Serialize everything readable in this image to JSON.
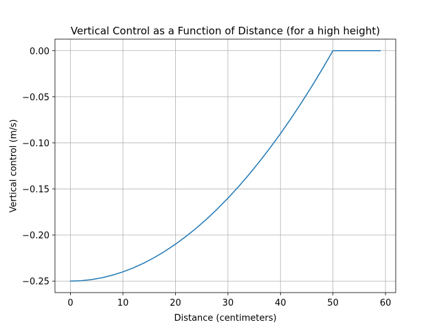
{
  "chart_data": {
    "type": "line",
    "title": "Vertical Control as a Function of Distance (for a high height)",
    "xlabel": "Distance (centimeters)",
    "ylabel": "Vertical control (m/s)",
    "xlim": [
      -2.95,
      61.95
    ],
    "ylim": [
      -0.2625,
      0.0125
    ],
    "xticks": [
      0,
      10,
      20,
      30,
      40,
      50,
      60
    ],
    "xtick_labels": [
      "0",
      "10",
      "20",
      "30",
      "40",
      "50",
      "60"
    ],
    "yticks": [
      0.0,
      -0.05,
      -0.1,
      -0.15,
      -0.2,
      -0.25
    ],
    "ytick_labels": [
      "0.00",
      "−0.05",
      "−0.10",
      "−0.15",
      "−0.20",
      "−0.25"
    ],
    "grid": true,
    "series": [
      {
        "color": "#1f77b4",
        "x": [
          0,
          2,
          4,
          6,
          8,
          10,
          12,
          14,
          16,
          18,
          20,
          22,
          24,
          26,
          28,
          30,
          32,
          34,
          36,
          38,
          40,
          42,
          44,
          46,
          48,
          50,
          51,
          52,
          53,
          54,
          55,
          56,
          57,
          58,
          59
        ],
        "y": [
          -0.25,
          -0.2496,
          -0.2484,
          -0.2464,
          -0.2436,
          -0.24,
          -0.2356,
          -0.2304,
          -0.2244,
          -0.2176,
          -0.21,
          -0.2016,
          -0.1924,
          -0.1824,
          -0.1716,
          -0.16,
          -0.1476,
          -0.1344,
          -0.1204,
          -0.1056,
          -0.09,
          -0.0736,
          -0.0564,
          -0.0384,
          -0.0196,
          0.0,
          0.0,
          0.0,
          0.0,
          0.0,
          0.0,
          0.0,
          0.0,
          0.0,
          0.0
        ]
      }
    ]
  }
}
